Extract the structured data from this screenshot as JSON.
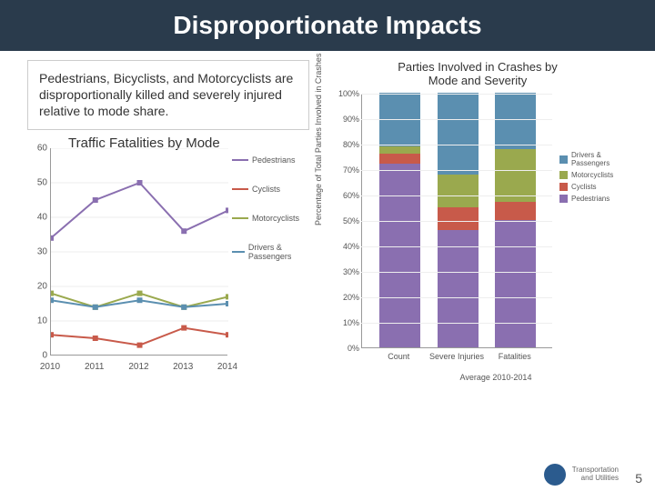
{
  "title": "Disproportionate Impacts",
  "callout": "Pedestrians, Bicyclists, and Motorcyclists are disproportionally killed and severely injured relative to mode share.",
  "line_chart": {
    "title": "Traffic Fatalities by Mode",
    "y_max": 60,
    "y_step": 10,
    "years": [
      "2010",
      "2011",
      "2012",
      "2013",
      "2014"
    ],
    "series": [
      {
        "name": "Pedestrians",
        "color": "#8a6fb0",
        "values": [
          34,
          45,
          50,
          36,
          42
        ]
      },
      {
        "name": "Cyclists",
        "color": "#c85a4a",
        "values": [
          6,
          5,
          3,
          8,
          6
        ]
      },
      {
        "name": "Motorcyclists",
        "color": "#9aa94e",
        "values": [
          18,
          14,
          18,
          14,
          17
        ]
      },
      {
        "name": "Drivers & Passengers",
        "color": "#5b8fb0",
        "values": [
          16,
          14,
          16,
          14,
          15
        ]
      }
    ]
  },
  "bar_chart": {
    "title": "Parties Involved in Crashes by",
    "subtitle": "Mode and Severity",
    "y_axis_label": "Percentage of Total Parties Involved in Crashes",
    "sublabel": "Average 2010-2014",
    "y_max": 100,
    "y_step": 10,
    "categories": [
      "Count",
      "Severe Injuries",
      "Fatalities"
    ],
    "series_order": [
      "Pedestrians",
      "Cyclists",
      "Motorcyclists",
      "Drivers & Passengers"
    ],
    "colors": {
      "Pedestrians": "#8a6fb0",
      "Cyclists": "#c85a4a",
      "Motorcyclists": "#9aa94e",
      "Drivers & Passengers": "#5b8fb0"
    },
    "stacks": [
      {
        "Pedestrians": 72,
        "Cyclists": 4,
        "Motorcyclists": 3,
        "Drivers & Passengers": 21
      },
      {
        "Pedestrians": 46,
        "Cyclists": 9,
        "Motorcyclists": 13,
        "Drivers & Passengers": 32
      },
      {
        "Pedestrians": 50,
        "Cyclists": 7,
        "Motorcyclists": 21,
        "Drivers & Passengers": 22
      }
    ],
    "legend": [
      "Drivers & Passengers",
      "Motorcyclists",
      "Cyclists",
      "Pedestrians"
    ]
  },
  "logo": {
    "line1": "Transportation",
    "line2": "and Utilities"
  },
  "page_number": "5"
}
